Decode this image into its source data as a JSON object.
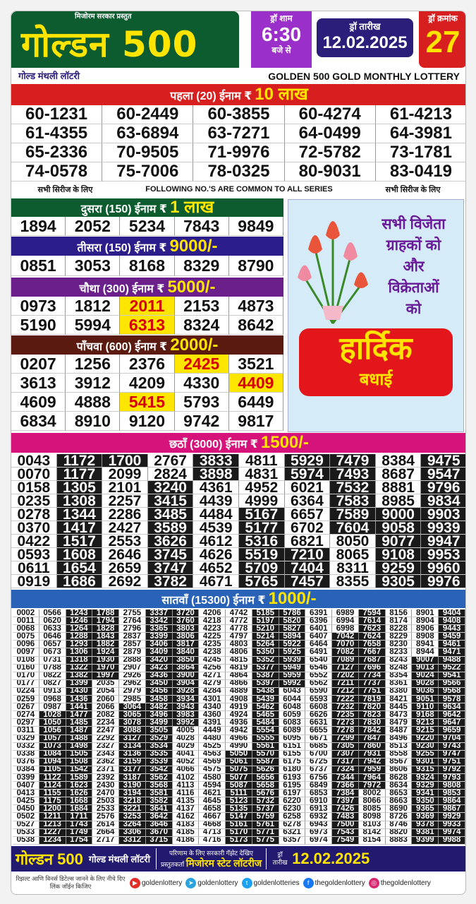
{
  "header": {
    "presents": "मिजोरम सरकार प्रस्तुत",
    "brand": "गोल्डन 500",
    "draw_time_label": "ड्रॉ शाम",
    "draw_time": "6:30",
    "draw_time_suffix": "बजे से",
    "draw_date_label": "ड्रॉ तारीख",
    "draw_date": "12.02.2025",
    "draw_no_label": "ड्रॉ क्रमांक",
    "draw_no": "27",
    "subtitle_hi": "गोल्ड मंथली लॉटरी",
    "subtitle_en": "GOLDEN 500 GOLD MONTHLY LOTTERY"
  },
  "prizes": {
    "first": {
      "label": "पहला (20) ईनाम ₹",
      "amount": "10 लाख",
      "color": "#d81f1f",
      "numbers": [
        "60-1231",
        "60-2449",
        "60-3855",
        "60-4274",
        "61-4213",
        "61-4355",
        "63-6894",
        "63-7271",
        "64-0499",
        "64-3981",
        "65-2336",
        "70-9505",
        "71-9976",
        "72-5782",
        "73-1781",
        "74-0578",
        "75-7006",
        "78-0325",
        "80-9031",
        "83-0419"
      ]
    },
    "common": {
      "left": "सभी सिरीज के लिए",
      "center": "FOLLOWING NO.'S ARE COMMON TO ALL SERIES",
      "right": "सभी सिरीज के लिए"
    },
    "second": {
      "label": "दुसरा (150) ईनाम ₹",
      "amount": "1 लाख",
      "color": "#0d5c30",
      "numbers": [
        "1894",
        "2052",
        "5234",
        "7843",
        "9849"
      ]
    },
    "third": {
      "label": "तीसरा (150) ईनाम ₹",
      "amount": "9000/-",
      "color": "#2b1d8a",
      "numbers": [
        "0851",
        "3053",
        "8168",
        "8329",
        "8790"
      ]
    },
    "fourth": {
      "label": "चौथा (300) ईनाम ₹",
      "amount": "5000/-",
      "color": "#6a1f8a",
      "numbers": [
        "0973",
        "1812",
        "2011",
        "2153",
        "4873",
        "5190",
        "5994",
        "6313",
        "8324",
        "8642"
      ],
      "highlighted": [
        "2011",
        "6313"
      ]
    },
    "fifth": {
      "label": "पाँचवा (600) ईनाम ₹",
      "amount": "2000/-",
      "color": "#5a1a10",
      "numbers": [
        "0207",
        "1256",
        "2376",
        "2425",
        "3521",
        "3613",
        "3912",
        "4209",
        "4330",
        "4409",
        "4609",
        "4888",
        "5415",
        "5793",
        "6449",
        "6834",
        "8910",
        "9120",
        "9742",
        "9817"
      ],
      "highlighted": [
        "2425",
        "4409",
        "5415"
      ]
    },
    "sixth": {
      "label": "छठाँ (3000) ईनाम ₹",
      "amount": "1500/-",
      "color": "#d6137a",
      "columns": [
        [
          "0043",
          "0070",
          "0158",
          "0235",
          "0278",
          "0370",
          "0422",
          "0593",
          "0611",
          "0919"
        ],
        [
          "1172",
          "1177",
          "1305",
          "1308",
          "1344",
          "1417",
          "1517",
          "1608",
          "1654",
          "1686"
        ],
        [
          "1700",
          "2099",
          "2101",
          "2257",
          "2286",
          "2427",
          "2553",
          "2646",
          "2659",
          "2692"
        ],
        [
          "2767",
          "2824",
          "3240",
          "3415",
          "3485",
          "3589",
          "3626",
          "3745",
          "3747",
          "3782"
        ],
        [
          "3833",
          "3898",
          "4361",
          "4439",
          "4484",
          "4539",
          "4612",
          "4626",
          "4652",
          "4671"
        ],
        [
          "4811",
          "4831",
          "4952",
          "4999",
          "5167",
          "5177",
          "5316",
          "5519",
          "5709",
          "5765"
        ],
        [
          "5929",
          "5974",
          "6021",
          "6364",
          "6657",
          "6702",
          "6821",
          "7210",
          "7404",
          "7457"
        ],
        [
          "7479",
          "7493",
          "7532",
          "7583",
          "7589",
          "7604",
          "8050",
          "8065",
          "8311",
          "8355"
        ],
        [
          "8384",
          "8687",
          "8881",
          "8985",
          "9000",
          "9058",
          "9077",
          "9108",
          "9259",
          "9305"
        ],
        [
          "9475",
          "9547",
          "9796",
          "9834",
          "9903",
          "9939",
          "9947",
          "9953",
          "9960",
          "9976"
        ]
      ]
    },
    "seventh": {
      "label": "सातवाँ (15300) ईनाम ₹",
      "amount": "1000/-",
      "color": "#2a62b8",
      "columns": [
        [
          "0002",
          "0011",
          "0068",
          "0075",
          "0096",
          "0097",
          "0108",
          "0160",
          "0170",
          "0177",
          "0224",
          "0259",
          "0267",
          "0274",
          "0297",
          "0311",
          "0329",
          "0332",
          "0338",
          "0376",
          "0384",
          "0399",
          "0407",
          "0413",
          "0425",
          "0450",
          "0502",
          "0527",
          "0533",
          "0538"
        ],
        [
          "0566",
          "0620",
          "0633",
          "0646",
          "0657",
          "0673",
          "0731",
          "0788",
          "0822",
          "0827",
          "0913",
          "0968",
          "0987",
          "1028",
          "1050",
          "1056",
          "1057",
          "1073",
          "1084",
          "1094",
          "1105",
          "1122",
          "1124",
          "1155",
          "1175",
          "1200",
          "1211",
          "1213",
          "1227",
          "1234"
        ],
        [
          "1243",
          "1246",
          "1264",
          "1288",
          "1293",
          "1306",
          "1318",
          "1322",
          "1382",
          "1399",
          "1430",
          "1436",
          "1441",
          "1477",
          "1485",
          "1487",
          "1488",
          "1498",
          "1505",
          "1508",
          "1542",
          "1589",
          "1623",
          "1626",
          "1668",
          "1684",
          "1711",
          "1743",
          "1749",
          "1754"
        ],
        [
          "1788",
          "1794",
          "1828",
          "1843",
          "1882",
          "1924",
          "1930",
          "1970",
          "1997",
          "2035",
          "2054",
          "2060",
          "2066",
          "2082",
          "2234",
          "2247",
          "2292",
          "2327",
          "2343",
          "2362",
          "2371",
          "2392",
          "2430",
          "2470",
          "2503",
          "2533",
          "2576",
          "2614",
          "2664",
          "2717"
        ],
        [
          "2755",
          "2764",
          "2796",
          "2837",
          "2857",
          "2879",
          "2888",
          "2907",
          "2926",
          "2962",
          "2979",
          "2985",
          "3064",
          "3065",
          "3078",
          "3088",
          "3127",
          "3134",
          "3136",
          "3159",
          "3177",
          "3187",
          "3190",
          "3194",
          "3218",
          "3221",
          "3253",
          "3264",
          "3306",
          "3312"
        ],
        [
          "3337",
          "3342",
          "3365",
          "3399",
          "3406",
          "3409",
          "3420",
          "3423",
          "3436",
          "3450",
          "3456",
          "3458",
          "3482",
          "3496",
          "3499",
          "3505",
          "3529",
          "3534",
          "3535",
          "3539",
          "3542",
          "3562",
          "3568",
          "3581",
          "3582",
          "3641",
          "3642",
          "3646",
          "3670",
          "3715"
        ],
        [
          "3720",
          "3760",
          "3803",
          "3806",
          "3817",
          "3840",
          "3850",
          "3864",
          "3900",
          "3904",
          "3928",
          "3934",
          "3943",
          "3983",
          "3992",
          "4005",
          "4028",
          "4029",
          "4041",
          "4052",
          "4066",
          "4102",
          "4113",
          "4116",
          "4135",
          "4137",
          "4162",
          "4183",
          "4185",
          "4186"
        ],
        [
          "4206",
          "4218",
          "4223",
          "4225",
          "4235",
          "4238",
          "4245",
          "4256",
          "4271",
          "4279",
          "4284",
          "4301",
          "4340",
          "4360",
          "4391",
          "4449",
          "4480",
          "4525",
          "4563",
          "4569",
          "4575",
          "4580",
          "4594",
          "4621",
          "4645",
          "4658",
          "4667",
          "4668",
          "4713",
          "4716"
        ],
        [
          "4742",
          "4772",
          "4778",
          "4797",
          "4803",
          "4806",
          "4815",
          "4819",
          "4864",
          "4866",
          "4889",
          "4908",
          "4919",
          "4924",
          "4936",
          "4942",
          "4966",
          "4990",
          "5050",
          "5061",
          "5075",
          "5077",
          "5087",
          "5111",
          "5123",
          "5135",
          "5147",
          "5161",
          "5170",
          "5173"
        ],
        [
          "5185",
          "5197",
          "5210",
          "5214",
          "5264",
          "5350",
          "5352",
          "5377",
          "5387",
          "5397",
          "5438",
          "5439",
          "5462",
          "5465",
          "5484",
          "5554",
          "5555",
          "5561",
          "5570",
          "5587",
          "5626",
          "5656",
          "5658",
          "5676",
          "5732",
          "5737",
          "5759",
          "5761",
          "5771",
          "5775"
        ],
        [
          "5786",
          "5820",
          "5827",
          "5894",
          "5922",
          "5925",
          "5939",
          "5949",
          "5959",
          "5992",
          "6043",
          "6044",
          "6048",
          "6059",
          "6083",
          "6089",
          "6095",
          "6151",
          "6155",
          "6175",
          "6180",
          "6193",
          "6195",
          "6197",
          "6220",
          "6230",
          "6258",
          "6278",
          "6321",
          "6357"
        ],
        [
          "6391",
          "6396",
          "6401",
          "6407",
          "6464",
          "6491",
          "6540",
          "6546",
          "6552",
          "6562",
          "6590",
          "6593",
          "6608",
          "6626",
          "6631",
          "6655",
          "6671",
          "6685",
          "6700",
          "6725",
          "6737",
          "6756",
          "6849",
          "6853",
          "6910",
          "6913",
          "6932",
          "6943",
          "6973",
          "6974"
        ],
        [
          "6989",
          "6994",
          "6998",
          "7042",
          "7070",
          "7082",
          "7089",
          "7127",
          "7202",
          "7211",
          "7212",
          "7222",
          "7232",
          "7235",
          "7273",
          "7278",
          "7299",
          "7305",
          "7307",
          "7317",
          "7324",
          "7344",
          "7366",
          "7384",
          "7397",
          "7426",
          "7483",
          "7500",
          "7543",
          "7549"
        ],
        [
          "7594",
          "7614",
          "7623",
          "7624",
          "7658",
          "7667",
          "7687",
          "7696",
          "7734",
          "7737",
          "7751",
          "7819",
          "7820",
          "7823",
          "7830",
          "7842",
          "7847",
          "7860",
          "7931",
          "7942",
          "7959",
          "7964",
          "7972",
          "8002",
          "8066",
          "8085",
          "8098",
          "8103",
          "8142",
          "8154"
        ],
        [
          "8156",
          "8174",
          "8228",
          "8229",
          "8230",
          "8233",
          "8243",
          "8248",
          "8354",
          "8361",
          "8380",
          "8421",
          "8445",
          "8473",
          "8479",
          "8487",
          "8496",
          "8513",
          "8558",
          "8567",
          "8606",
          "8628",
          "8634",
          "8653",
          "8663",
          "8690",
          "8726",
          "8746",
          "8820",
          "8883"
        ],
        [
          "8901",
          "8904",
          "8906",
          "8908",
          "8941",
          "8944",
          "9007",
          "9013",
          "9024",
          "9028",
          "9036",
          "9051",
          "9110",
          "9168",
          "9213",
          "9215",
          "9220",
          "9230",
          "9255",
          "9301",
          "9315",
          "9324",
          "9329",
          "9341",
          "9350",
          "9365",
          "9369",
          "9378",
          "9381",
          "9399"
        ],
        [
          "9404",
          "9408",
          "9443",
          "9459",
          "9461",
          "9471",
          "9488",
          "9522",
          "9541",
          "9566",
          "9568",
          "9578",
          "9634",
          "9642",
          "9647",
          "9659",
          "9704",
          "9743",
          "9747",
          "9751",
          "9792",
          "9793",
          "9808",
          "9853",
          "9864",
          "9867",
          "9929",
          "9933",
          "9974",
          "9988"
        ]
      ]
    }
  },
  "greeting": {
    "line1": "सभी विजेता",
    "line2": "ग्राहकों को",
    "line3": "और",
    "line4": "विक्रेताओं",
    "line5": "को",
    "badge1": "हार्दिक",
    "badge2": "बधाई",
    "image": "tulip-bouquet"
  },
  "footer": {
    "brand": "गोल्डन 500",
    "subtitle": "गोल्ड मंथली लॉटरी",
    "gazette": "परिणाम के लिए सरकारी गॅझेट देखिए",
    "presenter_label": "प्रस्तुतकर्ता",
    "presenter": "मिजोरम स्टेट लॉटरीज",
    "date_label": "ड्रॉ तारीख",
    "date": "12.02.2025"
  },
  "social": {
    "note": "रिझल्ट आणि विनर्स डिटेल्स जानने के लिए नीचे दिए लिंक जॉईन किजिए",
    "links": [
      {
        "icon": "youtube-icon",
        "color": "#e52d27",
        "handle": "goldenlottery"
      },
      {
        "icon": "telegram-icon",
        "color": "#2aa3df",
        "handle": "goldenlottery"
      },
      {
        "icon": "twitter-icon",
        "color": "#1da1f2",
        "handle": "goldenlotteries"
      },
      {
        "icon": "facebook-icon",
        "color": "#1877f2",
        "handle": "thegoldenlottery"
      },
      {
        "icon": "instagram-icon",
        "color": "#d6286e",
        "handle": "thegoldenlottery"
      }
    ]
  }
}
